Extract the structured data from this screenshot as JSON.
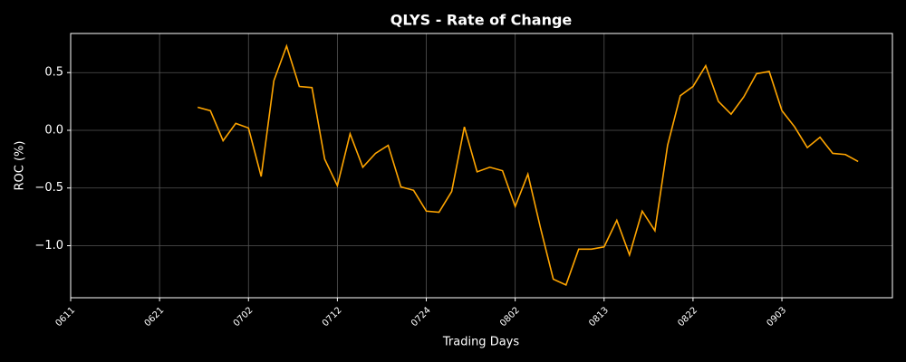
{
  "chart_data": {
    "type": "line",
    "title": "QLYS - Rate of Change",
    "x_label": "Trading Days",
    "y_label": "ROC (%)",
    "categories": [
      "0611",
      null,
      null,
      null,
      null,
      null,
      null,
      "0621",
      null,
      null,
      null,
      null,
      null,
      null,
      "0702",
      null,
      null,
      null,
      null,
      null,
      null,
      "0712",
      null,
      null,
      null,
      null,
      null,
      null,
      "0724",
      null,
      null,
      null,
      null,
      null,
      null,
      "0802",
      null,
      null,
      null,
      null,
      null,
      null,
      "0813",
      null,
      null,
      null,
      null,
      null,
      null,
      "0822",
      null,
      null,
      null,
      null,
      null,
      null,
      "0903",
      null,
      null,
      null,
      null,
      null,
      null
    ],
    "series": [
      {
        "name": "ROC",
        "color": "#ffa500",
        "values": [
          null,
          null,
          null,
          null,
          null,
          null,
          null,
          null,
          null,
          null,
          0.2,
          0.17,
          -0.09,
          0.06,
          0.02,
          -0.4,
          0.43,
          0.73,
          0.38,
          0.37,
          -0.25,
          -0.48,
          -0.03,
          -0.32,
          -0.2,
          -0.13,
          -0.49,
          -0.52,
          -0.7,
          -0.71,
          -0.53,
          0.03,
          -0.36,
          -0.32,
          -0.35,
          -0.66,
          -0.38,
          -0.85,
          -1.29,
          -1.34,
          -1.03,
          -1.03,
          -1.01,
          -0.78,
          -1.08,
          -0.7,
          -0.87,
          -0.13,
          0.3,
          0.38,
          0.56,
          0.25,
          0.14,
          0.29,
          0.49,
          0.51,
          0.17,
          0.03,
          -0.15,
          -0.06,
          -0.2,
          -0.21,
          -0.27
        ]
      }
    ],
    "ylim": [
      -1.451,
      0.839
    ],
    "yticks": [
      0.5,
      {
        "value": 0,
        "label": "0.0"
      },
      {
        "value": -0.5,
        "label": "−0.5"
      },
      {
        "value": -1,
        "label": "−1.0"
      }
    ],
    "grid": true
  }
}
